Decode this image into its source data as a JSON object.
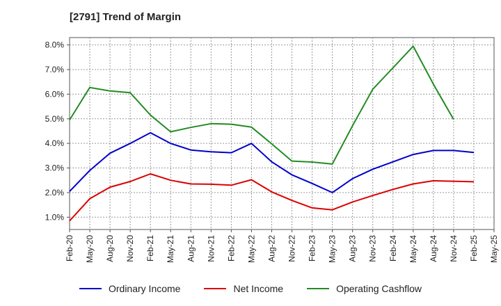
{
  "chart_data": {
    "type": "line",
    "title": "[2791]  Trend of Margin",
    "xlabel": "",
    "ylabel": "",
    "x": [
      "Feb-20",
      "May-20",
      "Aug-20",
      "Nov-20",
      "Feb-21",
      "May-21",
      "Aug-21",
      "Nov-21",
      "Feb-22",
      "May-22",
      "Aug-22",
      "Nov-22",
      "Feb-23",
      "May-23",
      "Aug-23",
      "Nov-23",
      "Feb-24",
      "May-24",
      "Aug-24",
      "Nov-24",
      "Feb-25",
      "May-25"
    ],
    "yticks": [
      "1.0%",
      "2.0%",
      "3.0%",
      "4.0%",
      "5.0%",
      "6.0%",
      "7.0%",
      "8.0%"
    ],
    "ylim": [
      0.5,
      8.3
    ],
    "grid": true,
    "legend_position": "bottom",
    "series": [
      {
        "name": "Ordinary Income",
        "color": "#0000cc",
        "values": [
          2.05,
          2.9,
          3.6,
          4.0,
          4.43,
          4.0,
          3.73,
          3.66,
          3.62,
          4.0,
          3.25,
          2.72,
          2.37,
          2.0,
          2.57,
          2.95,
          3.25,
          3.55,
          3.71,
          3.71,
          3.63,
          null
        ]
      },
      {
        "name": "Net Income",
        "color": "#dd0000",
        "values": [
          0.85,
          1.75,
          2.22,
          2.45,
          2.76,
          2.5,
          2.35,
          2.34,
          2.3,
          2.52,
          2.03,
          1.68,
          1.38,
          1.3,
          1.62,
          1.88,
          2.13,
          2.35,
          2.48,
          2.46,
          2.44,
          null
        ]
      },
      {
        "name": "Operating Cashflow",
        "color": "#228b22",
        "values": [
          4.95,
          6.27,
          6.13,
          6.06,
          5.15,
          4.47,
          4.65,
          4.8,
          4.78,
          4.66,
          3.98,
          3.28,
          3.24,
          3.16,
          4.72,
          6.2,
          7.07,
          7.95,
          6.4,
          4.97,
          null,
          null
        ]
      }
    ]
  }
}
